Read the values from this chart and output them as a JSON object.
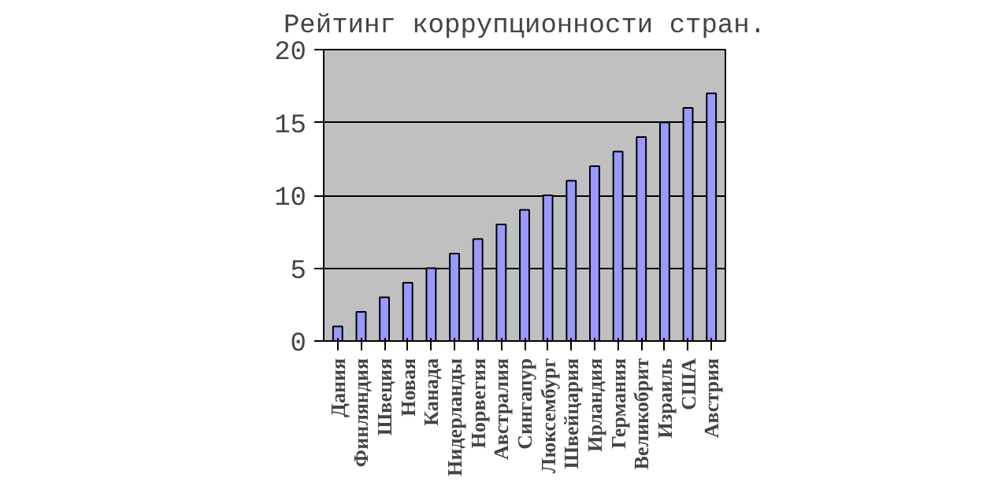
{
  "chart_data": {
    "type": "bar",
    "title": "Рейтинг коррупционности стран.",
    "categories": [
      "Дания",
      "Финляндия",
      "Швеция",
      "Новая",
      "Канада",
      "Нидерланды",
      "Норвегия",
      "Австралия",
      "Сингапур",
      "Люксембург",
      "Швейцария",
      "Ирландия",
      "Германия",
      "Великобрит",
      "Израиль",
      "США",
      "Австрия"
    ],
    "values": [
      1,
      2,
      3,
      4,
      5,
      6,
      7,
      8,
      9,
      10,
      11,
      12,
      13,
      14,
      15,
      16,
      17
    ],
    "color": "#9999ff",
    "ylim": [
      0,
      20
    ],
    "yticks": [
      0,
      5,
      10,
      15,
      20
    ],
    "grid": "y"
  }
}
